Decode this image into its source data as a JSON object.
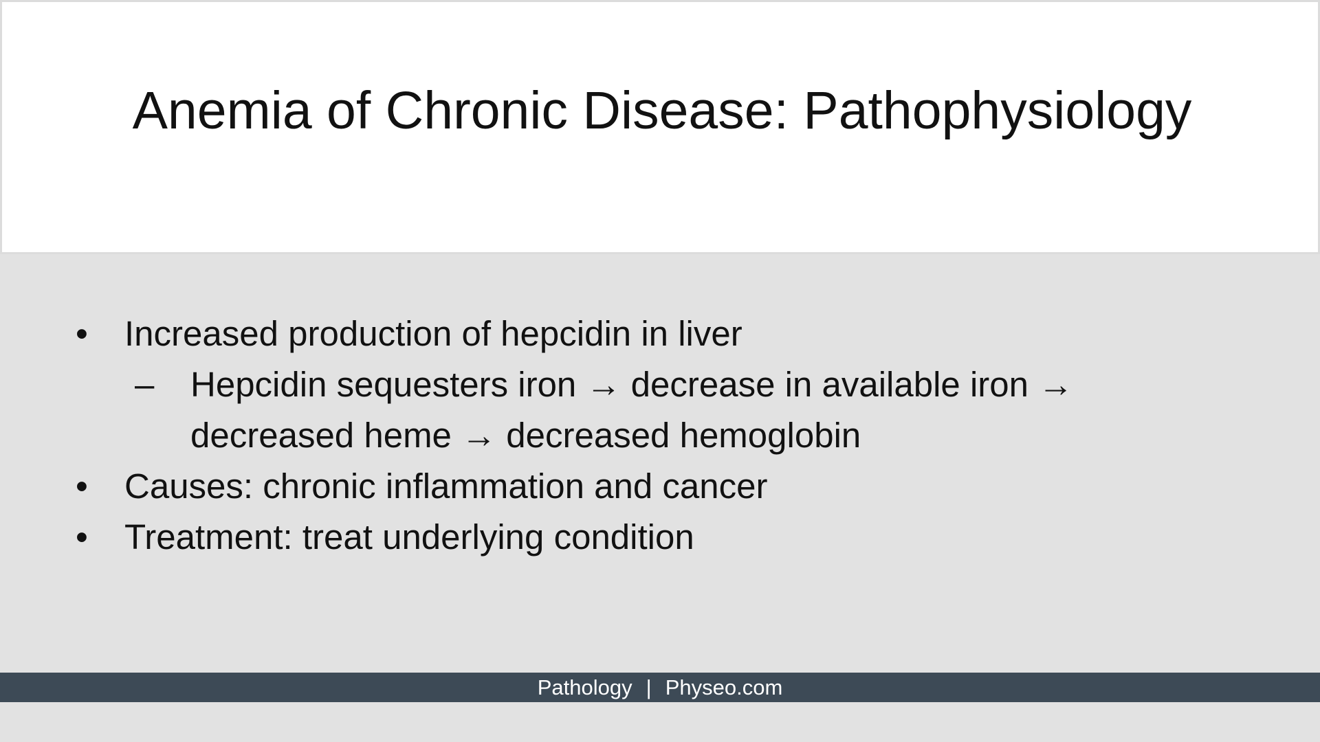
{
  "slide": {
    "title": "Anemia of Chronic Disease: Pathophysiology",
    "bullet_marker": "•",
    "sub_marker": "–",
    "bullets": [
      {
        "text": "Increased production of hepcidin in liver"
      },
      {
        "text": "Causes: chronic inflammation and cancer"
      },
      {
        "text": "Treatment: treat underlying condition"
      }
    ],
    "sub_bullet": {
      "line1": "Hepcidin sequesters iron → decrease in available iron →",
      "line2": "decreased heme → decreased hemoglobin"
    }
  },
  "footer": {
    "left": "Pathology",
    "separator": "|",
    "right": "Physeo.com"
  }
}
